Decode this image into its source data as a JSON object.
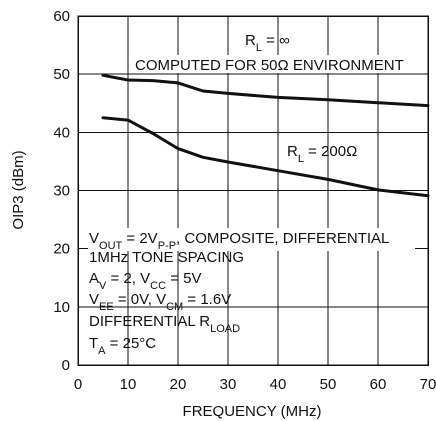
{
  "chart_data": {
    "type": "line",
    "title": "",
    "xlabel": "FREQUENCY (MHz)",
    "ylabel": "OIP3 (dBm)",
    "xlim": [
      0,
      70
    ],
    "ylim": [
      0,
      60
    ],
    "xticks": [
      "0",
      "10",
      "20",
      "30",
      "40",
      "50",
      "60",
      "70"
    ],
    "yticks": [
      "0",
      "10",
      "20",
      "30",
      "40",
      "50",
      "60"
    ],
    "grid": true,
    "series": [
      {
        "name": "RL = ∞",
        "x": [
          5,
          10,
          15,
          20,
          25,
          30,
          40,
          50,
          60,
          70
        ],
        "y": [
          49.8,
          49.0,
          48.9,
          48.5,
          47.1,
          46.7,
          46.0,
          45.6,
          45.1,
          44.6
        ]
      },
      {
        "name": "RL = 200Ω",
        "x": [
          5,
          10,
          15,
          20,
          25,
          30,
          40,
          50,
          60,
          70
        ],
        "y": [
          42.5,
          42.1,
          39.8,
          37.2,
          35.7,
          34.9,
          33.4,
          31.9,
          30.1,
          29.1
        ]
      }
    ],
    "series_labels": {
      "rl_inf_main": "R",
      "rl_inf_sub": "L",
      "rl_inf_tail": " = ∞",
      "computed": "COMPUTED FOR 50Ω ENVIRONMENT",
      "rl_200_main": "R",
      "rl_200_sub": "L",
      "rl_200_tail": " = 200Ω"
    },
    "conditions": {
      "vout_main": "V",
      "vout_sub": "OUT",
      "vout_mid": " = 2V",
      "vout_sub2": "P-P",
      "vout_tail": ", COMPOSITE, DIFFERENTIAL",
      "tone": "1MHz TONE SPACING",
      "av_main": "A",
      "av_sub": "V",
      "av_mid": " = 2, V",
      "av_sub2": "CC",
      "av_tail": " = 5V",
      "vee_main": "V",
      "vee_sub": "EE",
      "vee_mid": " = 0V, V",
      "vee_sub2": "CM",
      "vee_tail": " = 1.6V",
      "diff_main": "DIFFERENTIAL R",
      "diff_sub": "LOAD",
      "ta_main": "T",
      "ta_sub": "A",
      "ta_tail": " = 25°C"
    }
  }
}
